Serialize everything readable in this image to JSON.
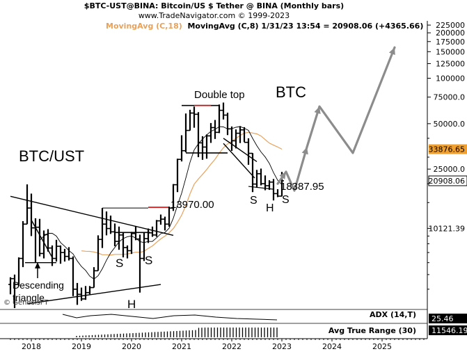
{
  "header": {
    "title": "$BTC-UST@BINA:  Bitcoin/US $ Tether @ BINA  (Monthly bars)",
    "subtitle": "www.TradeNavigator.com © 1999-2023",
    "ma1_label": "MovingAvg (C,18)",
    "ma2_readout": "MovingAvg (C,8)   1/31/23 13:54 = 20908.06 (+4365.66)"
  },
  "watermark": "© GenesisFT",
  "colors": {
    "ma18": "#e8a25b",
    "ma8": "#000000",
    "price_bars": "#000000",
    "projection": "#8c8c8c",
    "level_line": "#e00000",
    "badge_ma": "#f0a030",
    "badge_last": "#000000",
    "atr_badge": "#000000"
  },
  "chart_data": [
    {
      "type": "ohlc",
      "scale": "log",
      "title": "$BTC-UST@BINA:  Bitcoin/US $ Tether @ BINA  (Monthly bars)",
      "ylim": [
        3000,
        240000
      ],
      "ytick_labels": [
        "225000",
        "200000",
        "175000",
        "150000",
        "125000",
        "100000",
        "75000.0",
        "50000.0",
        "25000.0",
        "10121.39"
      ],
      "ytick_values": [
        225000,
        200000,
        175000,
        150000,
        125000,
        100000,
        75000,
        50000,
        25000,
        10121.39
      ],
      "x_labels": [
        "2018",
        "2019",
        "2020",
        "2021",
        "2022",
        "2023",
        "2024",
        "2025"
      ],
      "series": [
        {
          "name": "Monthly bars",
          "bars": [
            {
              "t": "2017-08",
              "o": 4300,
              "h": 4800,
              "l": 3700,
              "c": 4700
            },
            {
              "t": "2017-09",
              "o": 4700,
              "h": 5000,
              "l": 3000,
              "c": 4300
            },
            {
              "t": "2017-10",
              "o": 4300,
              "h": 6500,
              "l": 4200,
              "c": 6400
            },
            {
              "t": "2017-11",
              "o": 6400,
              "h": 11300,
              "l": 5600,
              "c": 10800
            },
            {
              "t": "2017-12",
              "o": 10800,
              "h": 19800,
              "l": 10800,
              "c": 13800
            },
            {
              "t": "2018-01",
              "o": 13800,
              "h": 17200,
              "l": 9000,
              "c": 10200
            },
            {
              "t": "2018-02",
              "o": 10200,
              "h": 11800,
              "l": 6000,
              "c": 10300
            },
            {
              "t": "2018-03",
              "o": 10300,
              "h": 11700,
              "l": 6600,
              "c": 6900
            },
            {
              "t": "2018-04",
              "o": 6900,
              "h": 9800,
              "l": 6400,
              "c": 9200
            },
            {
              "t": "2018-05",
              "o": 9200,
              "h": 10000,
              "l": 7100,
              "c": 7500
            },
            {
              "t": "2018-06",
              "o": 7500,
              "h": 7800,
              "l": 5700,
              "c": 6400
            },
            {
              "t": "2018-07",
              "o": 6400,
              "h": 8500,
              "l": 6100,
              "c": 7700
            },
            {
              "t": "2018-08",
              "o": 7700,
              "h": 7800,
              "l": 5900,
              "c": 7000
            },
            {
              "t": "2018-09",
              "o": 7000,
              "h": 7400,
              "l": 6100,
              "c": 6600
            },
            {
              "t": "2018-10",
              "o": 6600,
              "h": 7600,
              "l": 6200,
              "c": 6400
            },
            {
              "t": "2018-11",
              "o": 6400,
              "h": 6600,
              "l": 3600,
              "c": 4000
            },
            {
              "t": "2018-12",
              "o": 4000,
              "h": 4400,
              "l": 3150,
              "c": 3700
            },
            {
              "t": "2019-01",
              "o": 3700,
              "h": 4100,
              "l": 3350,
              "c": 3450
            },
            {
              "t": "2019-02",
              "o": 3450,
              "h": 4200,
              "l": 3400,
              "c": 3800
            },
            {
              "t": "2019-03",
              "o": 3800,
              "h": 4200,
              "l": 3700,
              "c": 4100
            },
            {
              "t": "2019-04",
              "o": 4100,
              "h": 5600,
              "l": 4100,
              "c": 5300
            },
            {
              "t": "2019-05",
              "o": 5300,
              "h": 9100,
              "l": 5300,
              "c": 8550
            },
            {
              "t": "2019-06",
              "o": 8550,
              "h": 13800,
              "l": 7500,
              "c": 10800
            },
            {
              "t": "2019-07",
              "o": 10800,
              "h": 13100,
              "l": 9100,
              "c": 10100
            },
            {
              "t": "2019-08",
              "o": 10100,
              "h": 12300,
              "l": 9300,
              "c": 9600
            },
            {
              "t": "2019-09",
              "o": 9600,
              "h": 10900,
              "l": 7700,
              "c": 8300
            },
            {
              "t": "2019-10",
              "o": 8300,
              "h": 10400,
              "l": 7300,
              "c": 9150
            },
            {
              "t": "2019-11",
              "o": 9150,
              "h": 9500,
              "l": 6500,
              "c": 7550
            },
            {
              "t": "2019-12",
              "o": 7550,
              "h": 7800,
              "l": 6400,
              "c": 7200
            },
            {
              "t": "2020-01",
              "o": 7200,
              "h": 9600,
              "l": 6850,
              "c": 9350
            },
            {
              "t": "2020-02",
              "o": 9350,
              "h": 10500,
              "l": 8450,
              "c": 8600
            },
            {
              "t": "2020-03",
              "o": 8600,
              "h": 9200,
              "l": 3800,
              "c": 6400
            },
            {
              "t": "2020-04",
              "o": 6400,
              "h": 9500,
              "l": 6150,
              "c": 8650
            },
            {
              "t": "2020-05",
              "o": 8650,
              "h": 10100,
              "l": 8100,
              "c": 9450
            },
            {
              "t": "2020-06",
              "o": 9450,
              "h": 10400,
              "l": 8900,
              "c": 9150
            },
            {
              "t": "2020-07",
              "o": 9150,
              "h": 11500,
              "l": 8900,
              "c": 11350
            },
            {
              "t": "2020-08",
              "o": 11350,
              "h": 12500,
              "l": 10700,
              "c": 11650
            },
            {
              "t": "2020-09",
              "o": 11650,
              "h": 12100,
              "l": 9800,
              "c": 10800
            },
            {
              "t": "2020-10",
              "o": 10800,
              "h": 14100,
              "l": 10400,
              "c": 13800
            },
            {
              "t": "2020-11",
              "o": 13800,
              "h": 19900,
              "l": 13200,
              "c": 19700
            },
            {
              "t": "2020-12",
              "o": 19700,
              "h": 29300,
              "l": 17600,
              "c": 29000
            },
            {
              "t": "2021-01",
              "o": 29000,
              "h": 41900,
              "l": 28100,
              "c": 33100
            },
            {
              "t": "2021-02",
              "o": 33100,
              "h": 58400,
              "l": 32300,
              "c": 45100
            },
            {
              "t": "2021-03",
              "o": 45100,
              "h": 61800,
              "l": 45000,
              "c": 58800
            },
            {
              "t": "2021-04",
              "o": 58800,
              "h": 64900,
              "l": 47000,
              "c": 57700
            },
            {
              "t": "2021-05",
              "o": 57700,
              "h": 59600,
              "l": 30000,
              "c": 37300
            },
            {
              "t": "2021-06",
              "o": 37300,
              "h": 41300,
              "l": 28800,
              "c": 35000
            },
            {
              "t": "2021-07",
              "o": 35000,
              "h": 42400,
              "l": 29300,
              "c": 41500
            },
            {
              "t": "2021-08",
              "o": 41500,
              "h": 50500,
              "l": 37300,
              "c": 47100
            },
            {
              "t": "2021-09",
              "o": 47100,
              "h": 52900,
              "l": 39600,
              "c": 43800
            },
            {
              "t": "2021-10",
              "o": 43800,
              "h": 67000,
              "l": 43300,
              "c": 61300
            },
            {
              "t": "2021-11",
              "o": 61300,
              "h": 69000,
              "l": 53300,
              "c": 57000
            },
            {
              "t": "2021-12",
              "o": 57000,
              "h": 59100,
              "l": 42000,
              "c": 46200
            },
            {
              "t": "2022-01",
              "o": 46200,
              "h": 47900,
              "l": 33000,
              "c": 38500
            },
            {
              "t": "2022-02",
              "o": 38500,
              "h": 45800,
              "l": 34300,
              "c": 43200
            },
            {
              "t": "2022-03",
              "o": 43200,
              "h": 48200,
              "l": 37200,
              "c": 45500
            },
            {
              "t": "2022-04",
              "o": 45500,
              "h": 47400,
              "l": 37700,
              "c": 37600
            },
            {
              "t": "2022-05",
              "o": 37600,
              "h": 40000,
              "l": 26700,
              "c": 31800
            },
            {
              "t": "2022-06",
              "o": 31800,
              "h": 31900,
              "l": 17600,
              "c": 19900
            },
            {
              "t": "2022-07",
              "o": 19900,
              "h": 24700,
              "l": 18800,
              "c": 23300
            },
            {
              "t": "2022-08",
              "o": 23300,
              "h": 25200,
              "l": 19500,
              "c": 20000
            },
            {
              "t": "2022-09",
              "o": 20000,
              "h": 22700,
              "l": 18100,
              "c": 19400
            },
            {
              "t": "2022-10",
              "o": 19400,
              "h": 21100,
              "l": 18200,
              "c": 20500
            },
            {
              "t": "2022-11",
              "o": 20500,
              "h": 21500,
              "l": 15500,
              "c": 17200
            },
            {
              "t": "2022-12",
              "o": 17200,
              "h": 18400,
              "l": 16300,
              "c": 16550
            },
            {
              "t": "2023-01",
              "o": 16550,
              "h": 23950,
              "l": 16500,
              "c": 20908.06
            }
          ]
        },
        {
          "name": "MovingAvg (C,18)",
          "color": "#e8a25b"
        },
        {
          "name": "MovingAvg (C,8)",
          "color": "#000000"
        },
        {
          "name": "projection",
          "points": [
            {
              "t": "2022-12",
              "v": 20000
            },
            {
              "t": "2023-02",
              "v": 24000
            },
            {
              "t": "2023-04",
              "v": 18000
            },
            {
              "t": "2023-07",
              "v": 35000
            },
            {
              "t": "2023-10",
              "v": 65000
            },
            {
              "t": "2024-06",
              "v": 32000
            },
            {
              "t": "2025-04",
              "v": 160000
            }
          ]
        }
      ],
      "badges": [
        {
          "label": "33876.65",
          "value": 33876.65,
          "color": "#f0a030"
        },
        {
          "label": "20908.06",
          "value": 20908.06,
          "color": "#000000"
        }
      ],
      "levels": [
        {
          "label": "13970.00",
          "value": 13970
        },
        {
          "label": "18387.95",
          "value": 18387.95
        }
      ],
      "annotations": [
        {
          "text": "BTC/UST",
          "size": "large"
        },
        {
          "text": "BTC",
          "size": "large"
        },
        {
          "text": "Double top",
          "size": "medium"
        },
        {
          "text": "Descending",
          "size": "medium"
        },
        {
          "text": "triangle",
          "size": "medium"
        },
        {
          "text": "S",
          "size": "medium"
        },
        {
          "text": "S",
          "size": "medium"
        },
        {
          "text": "H",
          "size": "medium"
        },
        {
          "text": "S",
          "size": "medium"
        },
        {
          "text": "S",
          "size": "medium"
        },
        {
          "text": "H",
          "size": "medium"
        }
      ],
      "grid": false
    },
    {
      "type": "line",
      "title": "ADX (14,T)",
      "series": [
        {
          "name": "ADX (14,T)",
          "last": "25.46"
        }
      ],
      "badge": "25.46"
    },
    {
      "type": "bar",
      "title": "Avg True Range (30)",
      "series": [
        {
          "name": "Avg True Range (30)",
          "last": "11546.19"
        }
      ],
      "badge": "11546.19"
    }
  ]
}
